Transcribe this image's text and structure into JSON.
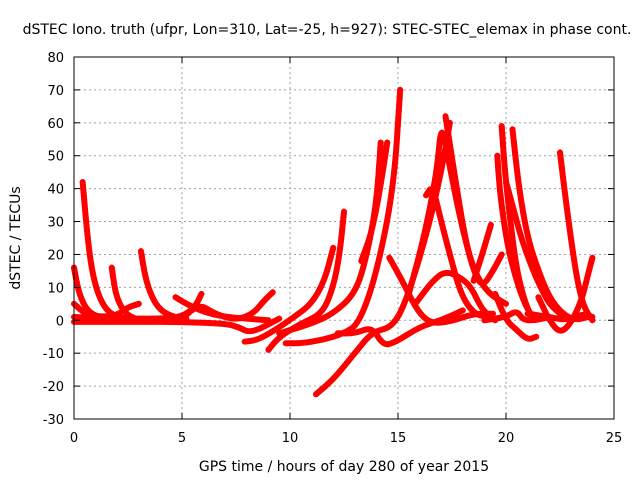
{
  "chart_data": {
    "type": "scatter",
    "title": "dSTEC Iono. truth (ufpr, Lon=310, Lat=-25, h=927): STEC-STEC_elemax in phase cont.",
    "xlabel": "GPS time / hours of day 280 of year 2015",
    "ylabel": "dSTEC  / TECUs",
    "xlim": [
      0,
      25
    ],
    "ylim": [
      -30,
      80
    ],
    "x_ticks": [
      0,
      5,
      10,
      15,
      20,
      25
    ],
    "y_ticks": [
      -30,
      -20,
      -10,
      0,
      10,
      20,
      30,
      40,
      50,
      60,
      70,
      80
    ],
    "grid": true,
    "legend": "none",
    "marker": "plus",
    "color": "#ff0000",
    "series": [
      {
        "points": [
          [
            0.0,
            16
          ],
          [
            0.2,
            9
          ],
          [
            0.5,
            4
          ],
          [
            0.9,
            1.5
          ],
          [
            1.5,
            0.5
          ],
          [
            2.3,
            0
          ]
        ]
      },
      {
        "points": [
          [
            0.4,
            42
          ],
          [
            0.6,
            27
          ],
          [
            0.8,
            16
          ],
          [
            1.1,
            8
          ],
          [
            1.5,
            3
          ],
          [
            2.0,
            1
          ],
          [
            2.5,
            0.5
          ]
        ]
      },
      {
        "points": [
          [
            1.75,
            16
          ],
          [
            1.9,
            9
          ],
          [
            2.1,
            5
          ],
          [
            2.4,
            2
          ],
          [
            2.8,
            0.5
          ],
          [
            3.2,
            0
          ]
        ]
      },
      {
        "points": [
          [
            3.1,
            21
          ],
          [
            3.3,
            13
          ],
          [
            3.6,
            7
          ],
          [
            4.0,
            3
          ],
          [
            4.6,
            1
          ],
          [
            5.2,
            0.5
          ]
        ]
      },
      {
        "points": [
          [
            0.0,
            5
          ],
          [
            0.5,
            2
          ],
          [
            1.2,
            1
          ],
          [
            2.0,
            1.5
          ],
          [
            2.5,
            4
          ],
          [
            3.0,
            5
          ]
        ]
      },
      {
        "points": [
          [
            0.0,
            1
          ],
          [
            2.0,
            0.5
          ],
          [
            4.0,
            0.5
          ],
          [
            5.0,
            1
          ],
          [
            5.6,
            4
          ],
          [
            5.9,
            8
          ]
        ]
      },
      {
        "points": [
          [
            4.7,
            7
          ],
          [
            5.2,
            5
          ],
          [
            6.0,
            2.5
          ],
          [
            7.0,
            1
          ],
          [
            8.0,
            0.5
          ],
          [
            9.0,
            0
          ]
        ]
      },
      {
        "points": [
          [
            5.0,
            0.5
          ],
          [
            5.8,
            5
          ],
          [
            6.5,
            2
          ],
          [
            7.5,
            0
          ],
          [
            8.3,
            2
          ],
          [
            8.8,
            6
          ],
          [
            9.2,
            8.5
          ]
        ]
      },
      {
        "points": [
          [
            0.0,
            -0.5
          ],
          [
            3.0,
            -0.5
          ],
          [
            5.0,
            -0.5
          ],
          [
            7.0,
            -1
          ],
          [
            7.6,
            -2
          ],
          [
            8.2,
            -4
          ],
          [
            9.5,
            0.5
          ]
        ]
      },
      {
        "points": [
          [
            7.9,
            -6.5
          ],
          [
            8.5,
            -6
          ],
          [
            9.3,
            -3
          ],
          [
            10.2,
            1
          ],
          [
            11.0,
            5
          ],
          [
            11.6,
            12
          ],
          [
            12.0,
            22
          ]
        ]
      },
      {
        "points": [
          [
            9.0,
            -9
          ],
          [
            9.5,
            -5
          ],
          [
            10.5,
            -1
          ],
          [
            11.5,
            2
          ],
          [
            12.0,
            10
          ],
          [
            12.3,
            20
          ],
          [
            12.5,
            33
          ]
        ]
      },
      {
        "points": [
          [
            9.5,
            -4
          ],
          [
            10.0,
            -3
          ],
          [
            11.0,
            -1
          ],
          [
            12.0,
            2
          ],
          [
            13.0,
            8
          ],
          [
            13.5,
            18
          ],
          [
            14.0,
            35
          ],
          [
            14.2,
            54
          ]
        ]
      },
      {
        "points": [
          [
            9.8,
            -7
          ],
          [
            10.5,
            -7
          ],
          [
            11.5,
            -6
          ],
          [
            12.5,
            -4
          ],
          [
            13.2,
            -1
          ],
          [
            14.0,
            14
          ],
          [
            14.8,
            40
          ],
          [
            15.1,
            70
          ]
        ]
      },
      {
        "points": [
          [
            13.3,
            18
          ],
          [
            13.8,
            27
          ],
          [
            14.2,
            41
          ],
          [
            14.5,
            54
          ]
        ]
      },
      {
        "points": [
          [
            12.2,
            -4
          ],
          [
            13.0,
            -4
          ],
          [
            13.8,
            -2
          ],
          [
            14.3,
            -7.5
          ],
          [
            14.8,
            -7
          ],
          [
            16.0,
            -2
          ],
          [
            17.0,
            0
          ],
          [
            18.0,
            3
          ]
        ]
      },
      {
        "points": [
          [
            11.2,
            -22.5
          ],
          [
            12.0,
            -18
          ],
          [
            13.0,
            -10
          ],
          [
            13.8,
            -3.5
          ],
          [
            14.8,
            -2
          ],
          [
            15.5,
            8
          ],
          [
            16.4,
            28
          ],
          [
            17.0,
            45
          ],
          [
            17.4,
            60
          ]
        ]
      },
      {
        "points": [
          [
            14.6,
            19
          ],
          [
            15.2,
            12
          ],
          [
            15.8,
            4
          ],
          [
            16.3,
            0
          ],
          [
            16.8,
            -1
          ],
          [
            17.6,
            0
          ],
          [
            18.5,
            2
          ],
          [
            19.4,
            2
          ]
        ]
      },
      {
        "points": [
          [
            15.5,
            8
          ],
          [
            16.2,
            25
          ],
          [
            16.8,
            45
          ],
          [
            17.0,
            60
          ],
          [
            17.3,
            50
          ],
          [
            17.9,
            30
          ],
          [
            18.5,
            15
          ],
          [
            19.2,
            8
          ],
          [
            20.0,
            5
          ]
        ]
      },
      {
        "points": [
          [
            15.8,
            5
          ],
          [
            16.6,
            12
          ],
          [
            17.2,
            15
          ],
          [
            17.9,
            13
          ],
          [
            18.4,
            10
          ],
          [
            18.9,
            3
          ],
          [
            19.5,
            0
          ]
        ]
      },
      {
        "points": [
          [
            17.2,
            62
          ],
          [
            17.6,
            45
          ],
          [
            18.1,
            25
          ],
          [
            18.5,
            15
          ],
          [
            18.9,
            10
          ],
          [
            19.4,
            15
          ],
          [
            19.8,
            20
          ]
        ]
      },
      {
        "points": [
          [
            16.3,
            38
          ],
          [
            16.6,
            41
          ],
          [
            17.0,
            30
          ],
          [
            17.4,
            20
          ],
          [
            17.9,
            8
          ],
          [
            18.5,
            2
          ],
          [
            19.1,
            1
          ]
        ]
      },
      {
        "points": [
          [
            18.5,
            12
          ],
          [
            18.9,
            20
          ],
          [
            19.3,
            29
          ]
        ]
      },
      {
        "points": [
          [
            19.8,
            59
          ],
          [
            19.95,
            45
          ],
          [
            20.2,
            30
          ],
          [
            20.5,
            15
          ],
          [
            20.9,
            5
          ],
          [
            21.2,
            1
          ]
        ]
      },
      {
        "points": [
          [
            20.3,
            58
          ],
          [
            20.6,
            40
          ],
          [
            21.0,
            25
          ],
          [
            21.5,
            15
          ],
          [
            22.0,
            7
          ],
          [
            22.6,
            2
          ],
          [
            23.2,
            0
          ],
          [
            23.8,
            1
          ]
        ]
      },
      {
        "points": [
          [
            19.6,
            50
          ],
          [
            19.7,
            40
          ],
          [
            19.9,
            30
          ],
          [
            20.1,
            22
          ],
          [
            20.4,
            14
          ],
          [
            20.8,
            6
          ],
          [
            21.2,
            1
          ]
        ]
      },
      {
        "points": [
          [
            20.0,
            42
          ],
          [
            20.3,
            35
          ],
          [
            20.7,
            25
          ],
          [
            21.2,
            16
          ],
          [
            21.6,
            10
          ],
          [
            22.0,
            5
          ],
          [
            22.5,
            2
          ]
        ]
      },
      {
        "points": [
          [
            19.5,
            8
          ],
          [
            20.0,
            0
          ],
          [
            20.5,
            -3
          ],
          [
            21.0,
            -6
          ],
          [
            21.4,
            -5
          ]
        ]
      },
      {
        "points": [
          [
            21.5,
            7
          ],
          [
            22.0,
            0
          ],
          [
            22.5,
            -4
          ],
          [
            23.0,
            -1
          ],
          [
            23.5,
            6
          ],
          [
            23.8,
            14
          ],
          [
            24.0,
            19
          ]
        ]
      },
      {
        "points": [
          [
            22.5,
            51
          ],
          [
            22.7,
            40
          ],
          [
            23.0,
            25
          ],
          [
            23.3,
            12
          ],
          [
            23.6,
            4
          ],
          [
            24.0,
            0
          ]
        ]
      },
      {
        "points": [
          [
            21.0,
            2
          ],
          [
            22.0,
            1
          ],
          [
            22.8,
            0
          ],
          [
            23.6,
            2
          ],
          [
            24.0,
            1
          ]
        ]
      },
      {
        "points": [
          [
            19.0,
            0
          ],
          [
            20.0,
            1
          ],
          [
            20.5,
            3
          ],
          [
            20.8,
            0
          ],
          [
            21.4,
            0
          ],
          [
            22.0,
            1
          ]
        ]
      }
    ]
  }
}
